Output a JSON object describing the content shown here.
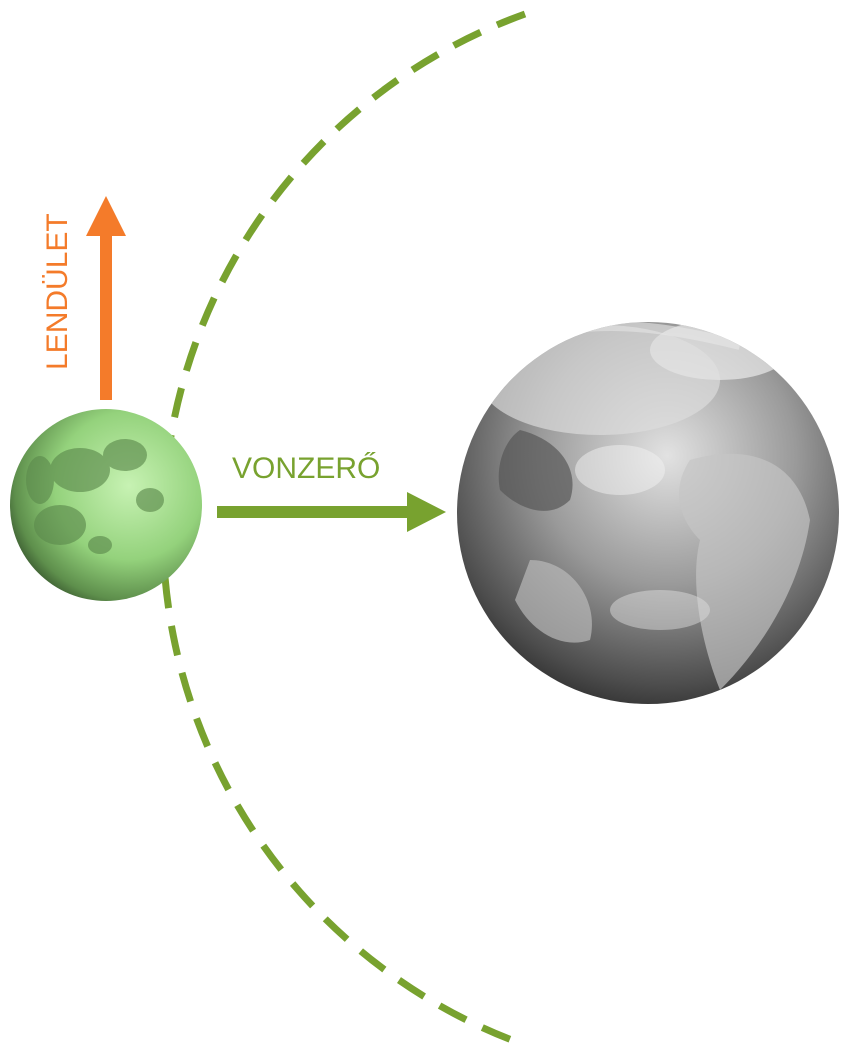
{
  "labels": {
    "momentum": "LENDÜLET",
    "gravity": "VONZERŐ"
  },
  "colors": {
    "orbit": "#78a22f",
    "momentum_arrow": "#f47b2a",
    "gravity_arrow": "#78a22f",
    "moon_tint": "#9fd88a",
    "earth_base": "#808080"
  },
  "icons": {
    "moon": "moon-icon",
    "earth": "earth-icon"
  }
}
